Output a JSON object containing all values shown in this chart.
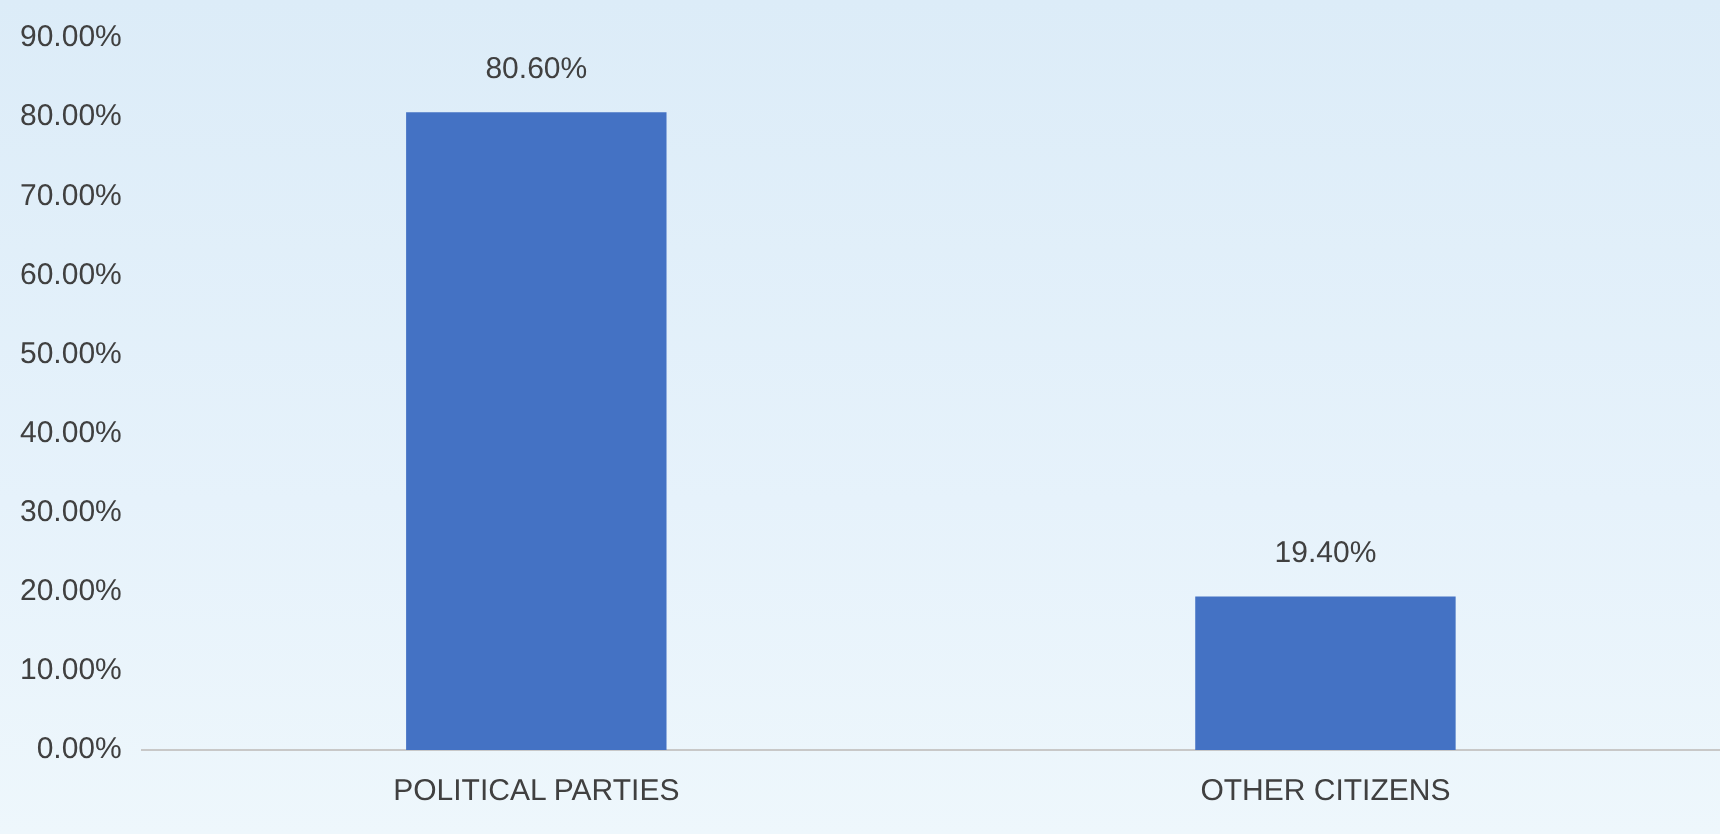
{
  "chart_data": {
    "type": "bar",
    "categories": [
      "POLITICAL PARTIES",
      "OTHER CITIZENS"
    ],
    "values": [
      80.6,
      19.4
    ],
    "color": "#4472c4",
    "value_labels": [
      "80.60%",
      "19.40%"
    ],
    "ylim": [
      0,
      90
    ],
    "yticks": [
      {
        "value": 0,
        "label": "0.00%"
      },
      {
        "value": 10,
        "label": "10.00%"
      },
      {
        "value": 20,
        "label": "20.00%"
      },
      {
        "value": 30,
        "label": "30.00%"
      },
      {
        "value": 40,
        "label": "40.00%"
      },
      {
        "value": 50,
        "label": "50.00%"
      },
      {
        "value": 60,
        "label": "60.00%"
      },
      {
        "value": 70,
        "label": "70.00%"
      },
      {
        "value": 80,
        "label": "80.00%"
      },
      {
        "value": 90,
        "label": "90.00%"
      }
    ],
    "grid": false,
    "legend": false
  }
}
